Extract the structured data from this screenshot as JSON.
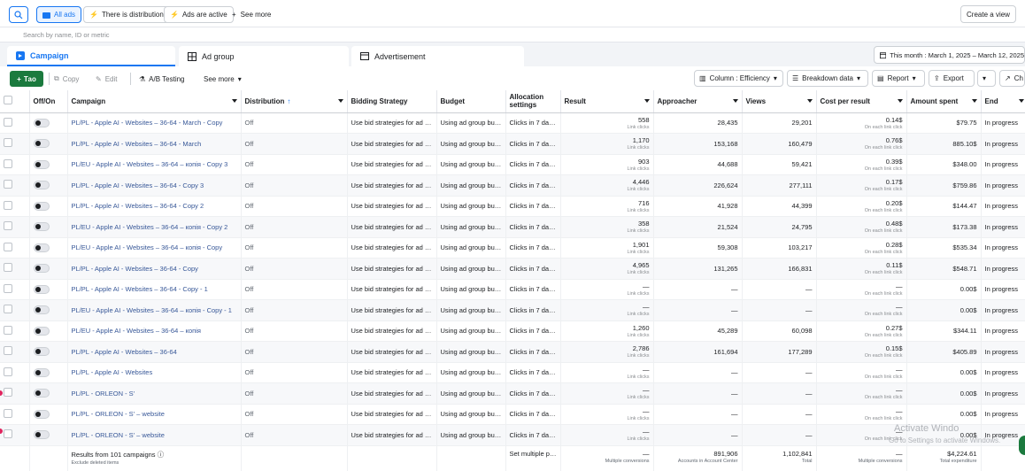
{
  "topbar": {
    "all_ads": "All ads",
    "filter_distribution": "There is distribution",
    "filter_active": "Ads are active",
    "see_more": "See more",
    "create_view": "Create a view"
  },
  "search": {
    "placeholder": "Search by name, ID or metric"
  },
  "tabs": {
    "campaign": "Campaign",
    "ad_group": "Ad group",
    "advertisement": "Advertisement"
  },
  "date_range": "This month : March 1, 2025 – March 12, 2025",
  "toolbar": {
    "new": "Тао",
    "copy": "Copy",
    "edit": "Edit",
    "ab_testing": "A/B Testing",
    "see_more": "See more",
    "column": "Column : Efficiency",
    "breakdown": "Breakdown data",
    "report": "Report",
    "export": "Export",
    "charts": "Ch"
  },
  "columns": {
    "off_on": "Off/On",
    "campaign": "Campaign",
    "distribution": "Distribution",
    "bidding": "Bidding Strategy",
    "budget": "Budget",
    "allocation": "Allocation settings",
    "result": "Result",
    "approacher": "Approacher",
    "views": "Views",
    "cpr": "Cost per result",
    "amount": "Amount spent",
    "end": "End"
  },
  "rows": [
    {
      "name": "PL/PL - Apple AI - Websites – 36-64 - March - Copy",
      "dist": "Off",
      "bid": "Use bid strategies for ad gr...",
      "budget": "Using ad group bud...",
      "alloc": "Clicks in 7 day...",
      "result": "558",
      "result_sub": "Link clicks",
      "approacher": "28,435",
      "views": "29,201",
      "cpr": "0.14$",
      "cpr_sub": "On each link click",
      "amount": "$79.75",
      "end": "In progress"
    },
    {
      "name": "PL/PL - Apple AI - Websites – 36-64 - March",
      "dist": "Off",
      "bid": "Use bid strategies for ad gr...",
      "budget": "Using ad group bud...",
      "alloc": "Clicks in 7 day...",
      "result": "1,170",
      "result_sub": "Link clicks",
      "approacher": "153,168",
      "views": "160,479",
      "cpr": "0.76$",
      "cpr_sub": "On each link click",
      "amount": "885.10$",
      "end": "In progress"
    },
    {
      "name": "PL/EU - Apple AI - Websites – 36-64 – копія - Copy 3",
      "dist": "Off",
      "bid": "Use bid strategies for ad gr...",
      "budget": "Using ad group bud...",
      "alloc": "Clicks in 7 day...",
      "result": "903",
      "result_sub": "Link clicks",
      "approacher": "44,688",
      "views": "59,421",
      "cpr": "0.39$",
      "cpr_sub": "On each link click",
      "amount": "$348.00",
      "end": "In progress"
    },
    {
      "name": "PL/PL - Apple AI - Websites – 36-64 - Copy 3",
      "dist": "Off",
      "bid": "Use bid strategies for ad gr...",
      "budget": "Using ad group bud...",
      "alloc": "Clicks in 7 day...",
      "result": "4,446",
      "result_sub": "Link clicks",
      "approacher": "226,624",
      "views": "277,111",
      "cpr": "0.17$",
      "cpr_sub": "On each link click",
      "amount": "$759.86",
      "end": "In progress"
    },
    {
      "name": "PL/PL - Apple AI - Websites – 36-64 - Copy 2",
      "dist": "Off",
      "bid": "Use bid strategies for ad gr...",
      "budget": "Using ad group bud...",
      "alloc": "Clicks in 7 day...",
      "result": "716",
      "result_sub": "Link clicks",
      "approacher": "41,928",
      "views": "44,399",
      "cpr": "0.20$",
      "cpr_sub": "On each link click",
      "amount": "$144.47",
      "end": "In progress"
    },
    {
      "name": "PL/EU - Apple AI - Websites – 36-64 – копія - Copy 2",
      "dist": "Off",
      "bid": "Use bid strategies for ad gr...",
      "budget": "Using ad group bud...",
      "alloc": "Clicks in 7 day...",
      "result": "358",
      "result_sub": "Link clicks",
      "approacher": "21,524",
      "views": "24,795",
      "cpr": "0.48$",
      "cpr_sub": "On each link click",
      "amount": "$173.38",
      "end": "In progress"
    },
    {
      "name": "PL/EU - Apple AI - Websites – 36-64 – копія - Copy",
      "dist": "Off",
      "bid": "Use bid strategies for ad gr...",
      "budget": "Using ad group bud...",
      "alloc": "Clicks in 7 day...",
      "result": "1,901",
      "result_sub": "Link clicks",
      "approacher": "59,308",
      "views": "103,217",
      "cpr": "0.28$",
      "cpr_sub": "On each link click",
      "amount": "$535.34",
      "end": "In progress"
    },
    {
      "name": "PL/PL - Apple AI - Websites – 36-64 - Copy",
      "dist": "Off",
      "bid": "Use bid strategies for ad gr...",
      "budget": "Using ad group bud...",
      "alloc": "Clicks in 7 day...",
      "result": "4,965",
      "result_sub": "Link clicks",
      "approacher": "131,265",
      "views": "166,831",
      "cpr": "0.11$",
      "cpr_sub": "On each link click",
      "amount": "$548.71",
      "end": "In progress"
    },
    {
      "name": "PL/PL - Apple AI - Websites – 36-64 - Copy - 1",
      "dist": "Off",
      "bid": "Use bid strategies for ad gr...",
      "budget": "Using ad group bud...",
      "alloc": "Clicks in 7 day...",
      "result": "—",
      "result_sub": "Link clicks",
      "approacher": "—",
      "views": "—",
      "cpr": "—",
      "cpr_sub": "On each link click",
      "amount": "0.00$",
      "end": "In progress"
    },
    {
      "name": "PL/EU - Apple AI - Websites – 36-64 – копія - Copy - 1",
      "dist": "Off",
      "bid": "Use bid strategies for ad gr...",
      "budget": "Using ad group bud...",
      "alloc": "Clicks in 7 day...",
      "result": "—",
      "result_sub": "Link clicks",
      "approacher": "—",
      "views": "—",
      "cpr": "—",
      "cpr_sub": "On each link click",
      "amount": "0.00$",
      "end": "In progress"
    },
    {
      "name": "PL/EU - Apple AI - Websites – 36-64 – копія",
      "dist": "Off",
      "bid": "Use bid strategies for ad gr...",
      "budget": "Using ad group bud...",
      "alloc": "Clicks in 7 day...",
      "result": "1,260",
      "result_sub": "Link clicks",
      "approacher": "45,289",
      "views": "60,098",
      "cpr": "0.27$",
      "cpr_sub": "On each link click",
      "amount": "$344.11",
      "end": "In progress"
    },
    {
      "name": "PL/PL - Apple AI - Websites – 36-64",
      "dist": "Off",
      "bid": "Use bid strategies for ad gr...",
      "budget": "Using ad group bud...",
      "alloc": "Clicks in 7 day...",
      "result": "2,786",
      "result_sub": "Link clicks",
      "approacher": "161,694",
      "views": "177,289",
      "cpr": "0.15$",
      "cpr_sub": "On each link click",
      "amount": "$405.89",
      "end": "In progress"
    },
    {
      "name": "PL/PL - Apple AI - Websites",
      "dist": "Off",
      "bid": "Use bid strategies for ad gr...",
      "budget": "Using ad group bud...",
      "alloc": "Clicks in 7 day...",
      "result": "—",
      "result_sub": "Link clicks",
      "approacher": "—",
      "views": "—",
      "cpr": "—",
      "cpr_sub": "On each link click",
      "amount": "0.00$",
      "end": "In progress"
    },
    {
      "name": "PL/PL - ORLEON - S'",
      "dist": "Off",
      "bid": "Use bid strategies for ad gr...",
      "budget": "Using ad group bud...",
      "alloc": "Clicks in 7 day...",
      "result": "—",
      "result_sub": "Link clicks",
      "approacher": "—",
      "views": "—",
      "cpr": "—",
      "cpr_sub": "On each link click",
      "amount": "0.00$",
      "end": "In progress"
    },
    {
      "name": "PL/PL - ORLEON - S' – website",
      "dist": "Off",
      "bid": "Use bid strategies for ad gr...",
      "budget": "Using ad group bud...",
      "alloc": "Clicks in 7 day...",
      "result": "—",
      "result_sub": "Link clicks",
      "approacher": "—",
      "views": "—",
      "cpr": "—",
      "cpr_sub": "On each link click",
      "amount": "0.00$",
      "end": "In progress"
    },
    {
      "name": "PL/PL - ORLEON - S' – website",
      "dist": "Off",
      "bid": "Use bid strategies for ad gr...",
      "budget": "Using ad group bud...",
      "alloc": "Clicks in 7 day...",
      "result": "—",
      "result_sub": "Link clicks",
      "approacher": "—",
      "views": "—",
      "cpr": "—",
      "cpr_sub": "On each link click",
      "amount": "0.00$",
      "end": "In progress"
    }
  ],
  "footer": {
    "results": "Results from 101 campaigns",
    "results_sub": "Exclude deleted items",
    "alloc": "Set multiple pr...",
    "result": "—",
    "result_sub": "Multiple conversions",
    "approacher": "891,906",
    "approacher_sub": "Accounts in Account Center",
    "views": "1,102,841",
    "views_sub": "Total",
    "cpr": "—",
    "cpr_sub": "Multiple conversions",
    "amount": "$4,224.61",
    "amount_sub": "Total expenditure"
  },
  "watermark": {
    "line1": "Activate Windo",
    "line2": "Go to Settings to activate Windows."
  },
  "colors": {
    "accent": "#1877f2",
    "new_button": "#1b7a3e",
    "link": "#385898"
  }
}
